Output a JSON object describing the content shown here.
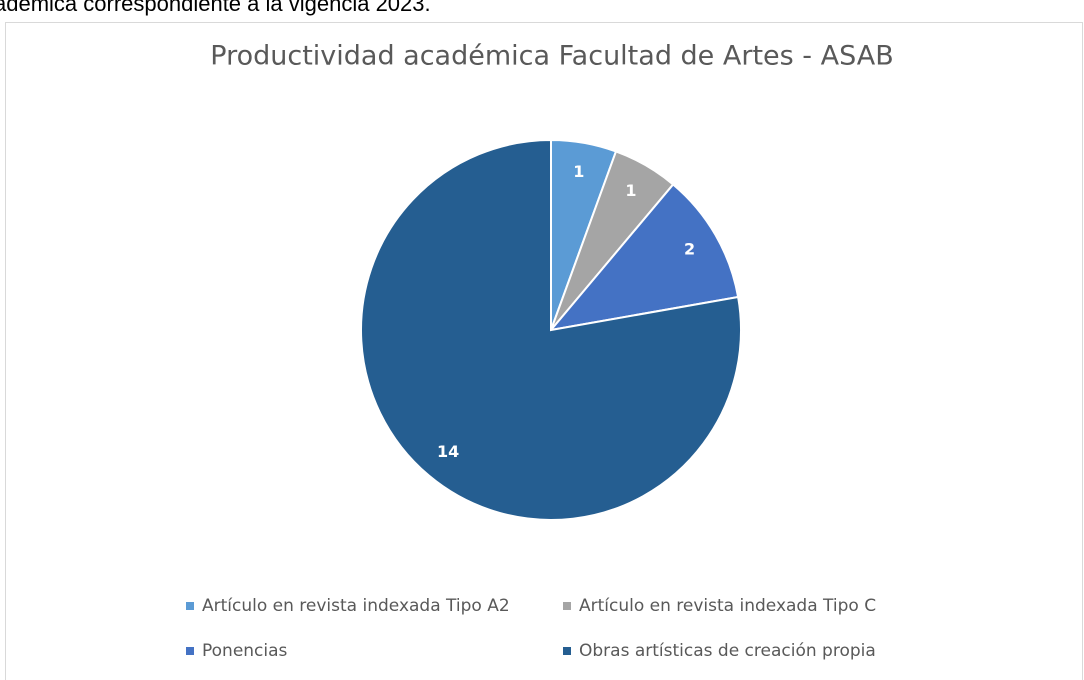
{
  "header_text": "adémica correspondiente a la vigencia 2023.",
  "chart_data": {
    "type": "pie",
    "title": "Productividad académica Facultad de Artes - ASAB",
    "categories": [
      "Artículo en revista indexada Tipo A2",
      "Artículo en revista indexada Tipo C",
      "Ponencias",
      "Obras artísticas de creación propia"
    ],
    "values": [
      1,
      1,
      2,
      14
    ],
    "colors": [
      "#5b9bd5",
      "#a5a5a5",
      "#4472c4",
      "#255e91"
    ],
    "legend": "bottom"
  }
}
